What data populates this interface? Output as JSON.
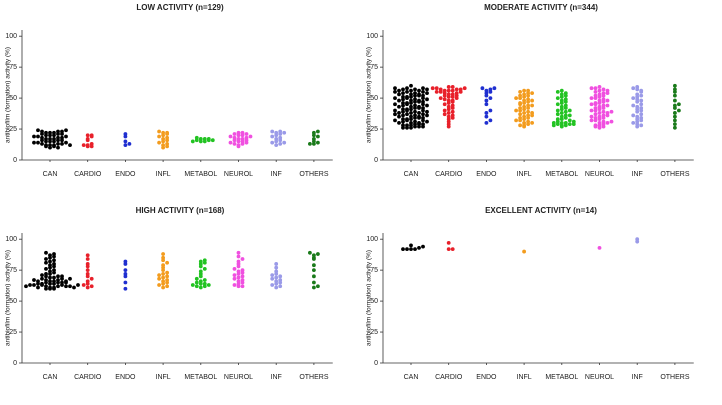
{
  "chart_data": [
    {
      "type": "strip",
      "title": "LOW ACTIVITY (n=129)",
      "y_label": "antibiofilm (formation) activity (%)",
      "categories": [
        "CAN",
        "CARDIO",
        "ENDO",
        "INFL",
        "METABOL",
        "NEUROL",
        "INF",
        "OTHERS"
      ],
      "colors": [
        "#000000",
        "#e8202a",
        "#1f2fd0",
        "#f39c1e",
        "#22c322",
        "#f050e0",
        "#9a9ae8",
        "#1a7a1a"
      ],
      "ylim": [
        0,
        105
      ],
      "yticks": [
        0,
        25,
        50,
        75,
        100
      ],
      "values": [
        [
          10,
          11,
          11,
          12,
          12,
          12,
          13,
          13,
          13,
          14,
          14,
          14,
          15,
          15,
          15,
          16,
          16,
          16,
          17,
          17,
          17,
          18,
          18,
          18,
          19,
          19,
          19,
          20,
          20,
          20,
          21,
          21,
          21,
          22,
          22,
          22,
          23,
          23,
          23,
          24,
          24,
          10,
          12
        ],
        [
          11,
          11,
          12,
          13,
          16,
          17,
          19,
          20,
          20,
          12
        ],
        [
          12,
          13,
          15,
          19,
          21
        ],
        [
          10,
          11,
          12,
          13,
          14,
          15,
          16,
          17,
          18,
          19,
          20,
          21,
          22,
          22,
          23
        ],
        [
          15,
          15,
          16,
          16,
          17,
          17,
          18,
          15,
          16,
          17
        ],
        [
          11,
          12,
          13,
          13,
          14,
          14,
          15,
          15,
          16,
          16,
          17,
          17,
          18,
          18,
          19,
          19,
          20,
          20,
          21,
          21,
          22,
          22
        ],
        [
          12,
          13,
          14,
          15,
          16,
          17,
          18,
          19,
          20,
          21,
          22,
          23,
          23,
          22,
          14
        ],
        [
          13,
          14,
          15,
          17,
          19,
          20,
          22,
          23,
          13
        ]
      ]
    },
    {
      "type": "strip",
      "title": "MODERATE ACTIVITY (n=344)",
      "y_label": "antibiofilm (formation) activity (%)",
      "categories": [
        "CAN",
        "CARDIO",
        "ENDO",
        "INFL",
        "METABOL",
        "NEUROL",
        "INF",
        "OTHERS"
      ],
      "colors": [
        "#000000",
        "#e8202a",
        "#1f2fd0",
        "#f39c1e",
        "#22c322",
        "#f050e0",
        "#9a9ae8",
        "#1a7a1a"
      ],
      "ylim": [
        0,
        105
      ],
      "yticks": [
        0,
        25,
        50,
        75,
        100
      ],
      "values": [
        [
          26,
          27,
          28,
          29,
          30,
          31,
          32,
          33,
          34,
          35,
          36,
          37,
          38,
          39,
          40,
          41,
          42,
          43,
          44,
          45,
          46,
          47,
          48,
          49,
          50,
          51,
          52,
          53,
          54,
          55,
          56,
          57,
          58,
          26,
          27,
          28,
          29,
          30,
          31,
          32,
          33,
          34,
          35,
          36,
          37,
          38,
          39,
          40,
          41,
          42,
          43,
          44,
          45,
          46,
          47,
          48,
          49,
          50,
          51,
          52,
          53,
          54,
          55,
          56,
          57,
          58,
          26,
          27,
          28,
          29,
          30,
          31,
          32,
          33,
          34,
          35,
          36,
          37,
          38,
          39,
          40,
          41,
          42,
          43,
          44,
          45,
          46,
          47,
          48,
          49,
          50,
          51,
          52,
          53,
          54,
          55,
          56,
          57,
          58,
          60
        ],
        [
          27,
          29,
          31,
          33,
          35,
          36,
          37,
          38,
          39,
          40,
          41,
          42,
          43,
          44,
          45,
          46,
          47,
          48,
          48,
          49,
          50,
          50,
          51,
          51,
          52,
          52,
          53,
          53,
          54,
          54,
          55,
          55,
          55,
          56,
          56,
          56,
          57,
          57,
          57,
          58,
          58,
          58,
          59,
          59,
          34
        ],
        [
          30,
          32,
          35,
          38,
          40,
          45,
          48,
          50,
          52,
          54,
          55,
          56,
          57,
          58,
          58
        ],
        [
          27,
          28,
          29,
          30,
          31,
          32,
          33,
          34,
          35,
          36,
          37,
          38,
          39,
          40,
          41,
          42,
          43,
          44,
          45,
          46,
          47,
          48,
          49,
          50,
          51,
          52,
          53,
          54,
          55,
          56,
          28,
          30,
          32,
          34,
          36,
          38,
          40,
          42,
          44,
          46,
          48,
          50,
          52,
          54,
          56
        ],
        [
          27,
          28,
          28,
          29,
          29,
          30,
          30,
          31,
          32,
          33,
          34,
          35,
          36,
          37,
          38,
          39,
          40,
          41,
          42,
          43,
          44,
          45,
          46,
          47,
          48,
          49,
          50,
          51,
          52,
          53,
          54,
          55,
          56,
          28,
          29,
          30,
          31,
          33,
          36,
          40
        ],
        [
          26,
          27,
          28,
          29,
          30,
          31,
          32,
          33,
          34,
          35,
          36,
          37,
          38,
          39,
          40,
          41,
          42,
          43,
          44,
          45,
          46,
          47,
          48,
          49,
          50,
          51,
          52,
          53,
          54,
          55,
          56,
          57,
          58,
          59,
          28,
          30,
          32,
          34,
          36,
          38,
          40,
          42,
          44,
          46,
          48,
          50,
          52,
          54,
          56,
          58,
          27,
          31,
          35,
          39,
          45
        ],
        [
          27,
          29,
          31,
          33,
          35,
          37,
          39,
          41,
          43,
          45,
          47,
          49,
          51,
          53,
          55,
          57,
          59,
          28,
          32,
          36,
          40,
          44,
          48,
          52,
          56,
          30,
          34,
          42,
          50,
          58
        ],
        [
          26,
          29,
          32,
          35,
          38,
          40,
          42,
          44,
          45,
          48,
          52,
          55,
          57,
          60
        ]
      ]
    },
    {
      "type": "strip",
      "title": "HIGH ACTIVITY (n=168)",
      "y_label": "antibiofilm (formation) activity (%)",
      "categories": [
        "CAN",
        "CARDIO",
        "ENDO",
        "INFL",
        "METABOL",
        "NEUROL",
        "INF",
        "OTHERS"
      ],
      "colors": [
        "#000000",
        "#e8202a",
        "#1f2fd0",
        "#f39c1e",
        "#22c322",
        "#f050e0",
        "#9a9ae8",
        "#1a7a1a"
      ],
      "ylim": [
        0,
        105
      ],
      "yticks": [
        0,
        25,
        50,
        75,
        100
      ],
      "values": [
        [
          60,
          60,
          61,
          61,
          62,
          62,
          63,
          63,
          64,
          64,
          65,
          65,
          66,
          66,
          67,
          67,
          68,
          68,
          69,
          69,
          70,
          70,
          71,
          72,
          73,
          74,
          75,
          76,
          77,
          78,
          79,
          80,
          81,
          82,
          83,
          84,
          85,
          86,
          87,
          88,
          89,
          60,
          61,
          62,
          63,
          64,
          65,
          66,
          62,
          63,
          64,
          65,
          61,
          62,
          63,
          66,
          67,
          68,
          70,
          72
        ],
        [
          61,
          62,
          63,
          64,
          66,
          68,
          70,
          72,
          75,
          78,
          80,
          84,
          87
        ],
        [
          60,
          65,
          70,
          72,
          75,
          80,
          82
        ],
        [
          61,
          62,
          63,
          64,
          65,
          66,
          67,
          68,
          69,
          70,
          71,
          72,
          73,
          75,
          77,
          79,
          81,
          83,
          85,
          88
        ],
        [
          61,
          62,
          62,
          63,
          63,
          64,
          64,
          65,
          66,
          67,
          68,
          70,
          72,
          74,
          76,
          78,
          80,
          81,
          82,
          83
        ],
        [
          62,
          62,
          63,
          64,
          65,
          66,
          67,
          68,
          69,
          70,
          71,
          72,
          73,
          74,
          75,
          76,
          78,
          80,
          82,
          84,
          86,
          89
        ],
        [
          61,
          62,
          63,
          64,
          65,
          66,
          67,
          68,
          69,
          70,
          71,
          72,
          74,
          77,
          80
        ],
        [
          61,
          62,
          65,
          70,
          75,
          79,
          84,
          85,
          87,
          88,
          89
        ]
      ]
    },
    {
      "type": "strip",
      "title": "EXCELLENT ACTIVITY (n=14)",
      "y_label": "antibiofilm (formation) activity (%)",
      "categories": [
        "CAN",
        "CARDIO",
        "ENDO",
        "INFL",
        "METABOL",
        "NEUROL",
        "INF",
        "OTHERS"
      ],
      "colors": [
        "#000000",
        "#e8202a",
        "#1f2fd0",
        "#f39c1e",
        "#22c322",
        "#f050e0",
        "#9a9ae8",
        "#1a7a1a"
      ],
      "ylim": [
        0,
        105
      ],
      "yticks": [
        0,
        25,
        50,
        75,
        100
      ],
      "values": [
        [
          92,
          92,
          92,
          95,
          93,
          92,
          94
        ],
        [
          92,
          92,
          97
        ],
        [],
        [
          90
        ],
        [],
        [
          93
        ],
        [
          98,
          100
        ],
        []
      ]
    }
  ]
}
